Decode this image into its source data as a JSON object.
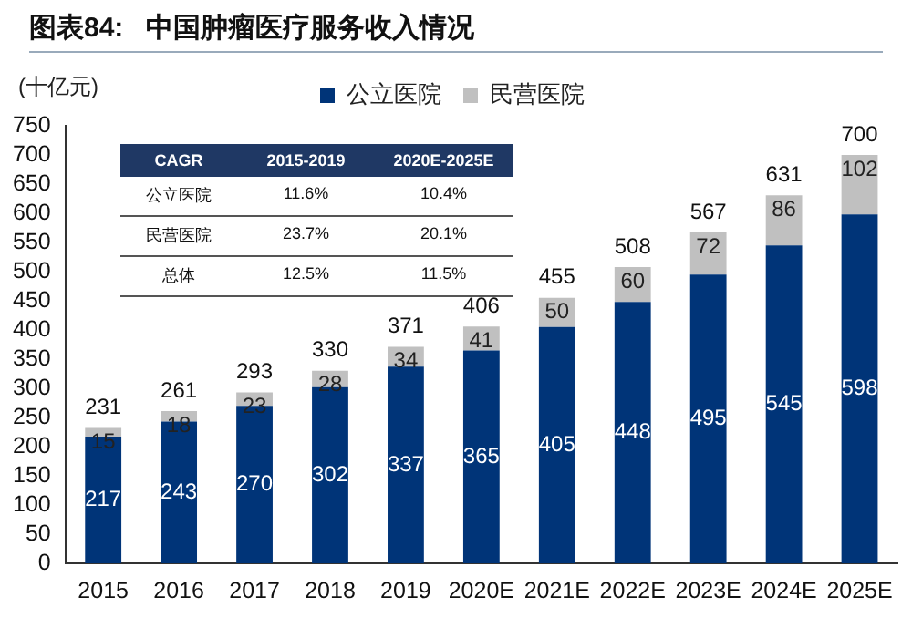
{
  "chart_data": {
    "type": "bar",
    "title": "图表84:   中国肿瘤医疗服务收入情况",
    "ylabel": "(十亿元)",
    "categories": [
      "2015",
      "2016",
      "2017",
      "2018",
      "2019",
      "2020E",
      "2021E",
      "2022E",
      "2023E",
      "2024E",
      "2025E"
    ],
    "series": [
      {
        "name": "公立医院",
        "color": "#003478",
        "values": [
          217,
          243,
          270,
          302,
          337,
          365,
          405,
          448,
          495,
          545,
          598
        ]
      },
      {
        "name": "民营医院",
        "color": "#c0c0c0",
        "values": [
          15,
          18,
          23,
          28,
          34,
          41,
          50,
          60,
          72,
          86,
          102
        ]
      }
    ],
    "stacked": true,
    "data_labels": true,
    "totals": [
      "231",
      "261",
      "293",
      "330",
      "371",
      "406",
      "455",
      "508",
      "567",
      "631",
      "700"
    ],
    "ylim": [
      0,
      750
    ],
    "yticks": [
      0,
      50,
      100,
      150,
      200,
      250,
      300,
      350,
      400,
      450,
      500,
      550,
      600,
      650,
      700,
      750
    ],
    "grid": false,
    "legend": "top",
    "annotations": [
      "CAGR",
      "2015-2019",
      "2020E-2025E",
      "公立医院",
      "11.6%",
      "10.4%",
      "民营医院",
      "23.7%",
      "20.1%",
      "总体",
      "12.5%",
      "11.5%"
    ]
  }
}
